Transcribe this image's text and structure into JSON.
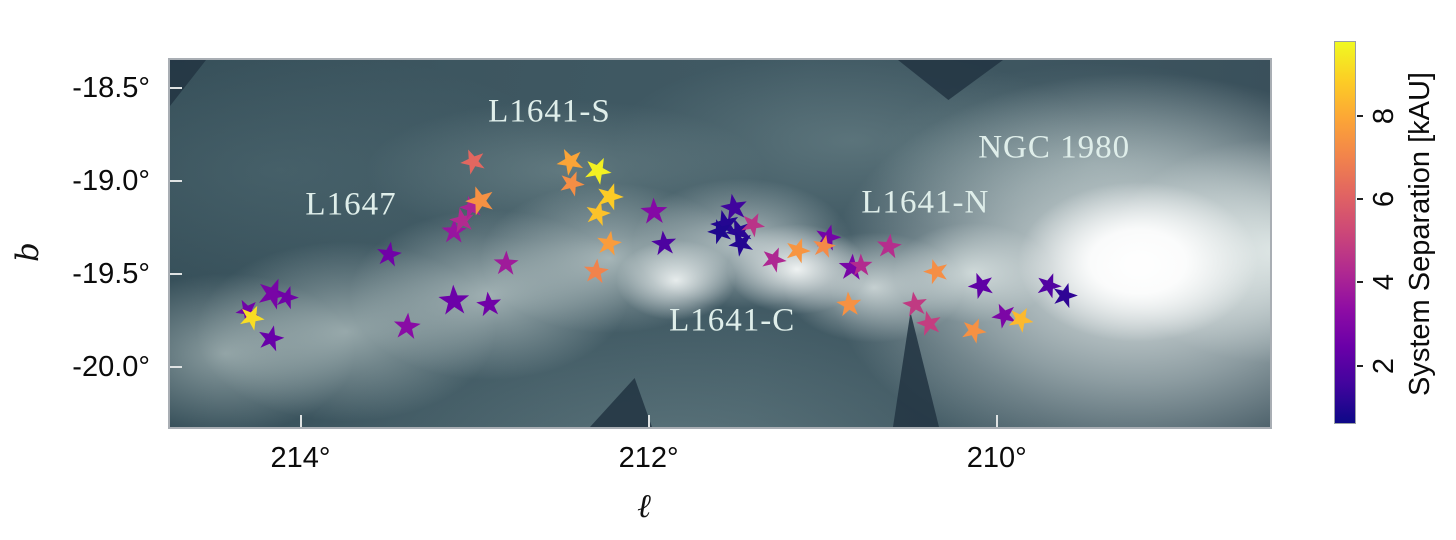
{
  "chart_data": {
    "type": "scatter",
    "title": "",
    "description": "Stellar systems overlaid on a dust emission map of the Orion A / L1641 cloud, colored by system separation",
    "xlabel": "ℓ",
    "ylabel": "b",
    "x_axis": {
      "tick_values": [
        214,
        212,
        210
      ],
      "tick_labels": [
        "214°",
        "212°",
        "210°"
      ],
      "range": [
        214.75,
        208.43
      ],
      "inverted": true
    },
    "y_axis": {
      "tick_values": [
        -18.5,
        -19.0,
        -19.5,
        -20.0
      ],
      "tick_labels": [
        "-18.5°",
        "-19.0°",
        "-19.5°",
        "-20.0°"
      ],
      "range": [
        -18.35,
        -20.32
      ]
    },
    "colorbar": {
      "label": "System Separation [kAU]",
      "tick_values": [
        2,
        4,
        6,
        8
      ],
      "tick_labels": [
        "2",
        "4",
        "6",
        "8"
      ],
      "vmin": 0.6,
      "vmax": 9.8,
      "colormap": "plasma",
      "gradient_stops": [
        "#0d0887",
        "#41049d",
        "#6a00a8",
        "#8f0da4",
        "#b12a90",
        "#cc4778",
        "#e16462",
        "#f2844b",
        "#fca636",
        "#fcce25",
        "#f0f921"
      ]
    },
    "annotations": [
      {
        "text": "L1647",
        "l": 213.71,
        "b": -19.13
      },
      {
        "text": "L1641-S",
        "l": 212.57,
        "b": -18.63
      },
      {
        "text": "L1641-N",
        "l": 210.41,
        "b": -19.12
      },
      {
        "text": "L1641-C",
        "l": 211.52,
        "b": -19.75
      },
      {
        "text": "NGC 1980",
        "l": 209.67,
        "b": -18.82
      }
    ],
    "series": [
      {
        "name": "stellar systems",
        "marker": "star",
        "points": [
          {
            "l": 214.31,
            "b": -19.69,
            "sep": 2.6,
            "size": 24
          },
          {
            "l": 214.28,
            "b": -19.73,
            "sep": 9.2,
            "size": 26
          },
          {
            "l": 214.16,
            "b": -19.6,
            "sep": 2.8,
            "size": 32
          },
          {
            "l": 214.08,
            "b": -19.62,
            "sep": 2.6,
            "size": 24
          },
          {
            "l": 214.17,
            "b": -19.84,
            "sep": 2.4,
            "size": 27
          },
          {
            "l": 213.49,
            "b": -19.39,
            "sep": 2.6,
            "size": 26
          },
          {
            "l": 213.39,
            "b": -19.78,
            "sep": 3.2,
            "size": 28
          },
          {
            "l": 213.12,
            "b": -19.27,
            "sep": 3.6,
            "size": 26
          },
          {
            "l": 213.12,
            "b": -19.64,
            "sep": 2.5,
            "size": 32
          },
          {
            "l": 212.92,
            "b": -19.66,
            "sep": 2.6,
            "size": 26
          },
          {
            "l": 213.07,
            "b": -19.21,
            "sep": 4.3,
            "size": 26
          },
          {
            "l": 213.02,
            "b": -19.14,
            "sep": 4.1,
            "size": 24
          },
          {
            "l": 212.97,
            "b": -19.1,
            "sep": 7.4,
            "size": 30
          },
          {
            "l": 213.01,
            "b": -18.89,
            "sep": 6.2,
            "size": 26
          },
          {
            "l": 212.45,
            "b": -18.89,
            "sep": 7.9,
            "size": 28
          },
          {
            "l": 212.29,
            "b": -18.94,
            "sep": 9.6,
            "size": 28
          },
          {
            "l": 212.44,
            "b": -19.01,
            "sep": 7.3,
            "size": 26
          },
          {
            "l": 212.22,
            "b": -19.08,
            "sep": 8.8,
            "size": 28
          },
          {
            "l": 212.29,
            "b": -19.17,
            "sep": 8.6,
            "size": 26
          },
          {
            "l": 212.23,
            "b": -19.33,
            "sep": 7.7,
            "size": 26
          },
          {
            "l": 212.3,
            "b": -19.48,
            "sep": 7.0,
            "size": 26
          },
          {
            "l": 212.82,
            "b": -19.44,
            "sep": 3.8,
            "size": 26
          },
          {
            "l": 211.97,
            "b": -19.16,
            "sep": 3.1,
            "size": 28
          },
          {
            "l": 211.91,
            "b": -19.33,
            "sep": 1.8,
            "size": 26
          },
          {
            "l": 211.51,
            "b": -19.14,
            "sep": 1.5,
            "size": 28
          },
          {
            "l": 211.56,
            "b": -19.23,
            "sep": 1.0,
            "size": 30
          },
          {
            "l": 211.59,
            "b": -19.27,
            "sep": 0.9,
            "size": 26
          },
          {
            "l": 211.48,
            "b": -19.27,
            "sep": 1.1,
            "size": 28
          },
          {
            "l": 211.47,
            "b": -19.33,
            "sep": 1.0,
            "size": 26
          },
          {
            "l": 211.4,
            "b": -19.23,
            "sep": 4.6,
            "size": 25
          },
          {
            "l": 211.28,
            "b": -19.42,
            "sep": 4.2,
            "size": 26
          },
          {
            "l": 211.14,
            "b": -19.37,
            "sep": 7.5,
            "size": 26
          },
          {
            "l": 210.97,
            "b": -19.3,
            "sep": 2.7,
            "size": 27
          },
          {
            "l": 210.99,
            "b": -19.35,
            "sep": 7.2,
            "size": 24
          },
          {
            "l": 210.62,
            "b": -19.35,
            "sep": 4.4,
            "size": 26
          },
          {
            "l": 210.83,
            "b": -19.46,
            "sep": 2.8,
            "size": 28
          },
          {
            "l": 210.78,
            "b": -19.45,
            "sep": 4.3,
            "size": 24
          },
          {
            "l": 210.85,
            "b": -19.66,
            "sep": 7.4,
            "size": 26
          },
          {
            "l": 210.47,
            "b": -19.66,
            "sep": 4.8,
            "size": 26
          },
          {
            "l": 210.39,
            "b": -19.76,
            "sep": 4.9,
            "size": 26
          },
          {
            "l": 210.35,
            "b": -19.48,
            "sep": 7.3,
            "size": 26
          },
          {
            "l": 210.09,
            "b": -19.56,
            "sep": 2.2,
            "size": 27
          },
          {
            "l": 209.96,
            "b": -19.72,
            "sep": 2.9,
            "size": 26
          },
          {
            "l": 209.86,
            "b": -19.74,
            "sep": 8.4,
            "size": 26
          },
          {
            "l": 210.13,
            "b": -19.8,
            "sep": 7.4,
            "size": 26
          },
          {
            "l": 209.7,
            "b": -19.56,
            "sep": 1.9,
            "size": 26
          },
          {
            "l": 209.61,
            "b": -19.61,
            "sep": 1.2,
            "size": 26
          }
        ]
      }
    ]
  }
}
